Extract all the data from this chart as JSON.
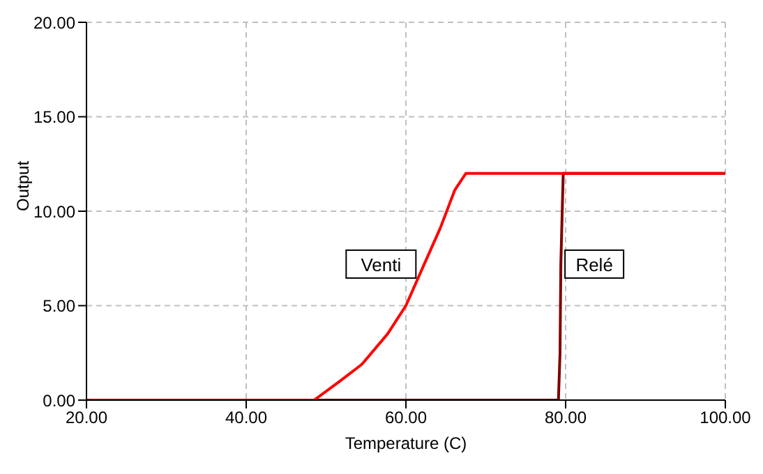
{
  "chart_data": {
    "type": "line",
    "xlabel": "Temperature (C)",
    "ylabel": "Output",
    "xlim": [
      20,
      100
    ],
    "ylim": [
      0,
      20
    ],
    "xticks": [
      {
        "value": 20,
        "label": "20.00"
      },
      {
        "value": 40,
        "label": "40.00"
      },
      {
        "value": 60,
        "label": "60.00"
      },
      {
        "value": 80,
        "label": "80.00"
      },
      {
        "value": 100,
        "label": "100.00"
      }
    ],
    "yticks": [
      {
        "value": 0,
        "label": "0.00"
      },
      {
        "value": 5,
        "label": "5.00"
      },
      {
        "value": 10,
        "label": "10.00"
      },
      {
        "value": 15,
        "label": "15.00"
      },
      {
        "value": 20,
        "label": "20.00"
      }
    ],
    "grid": true,
    "marker": "none",
    "line_style": "solid",
    "series": [
      {
        "name": "Relé",
        "color": "#800000",
        "x": [
          20,
          79.1,
          79.3,
          79.4,
          79.7,
          100
        ],
        "values": [
          0,
          0,
          2.5,
          7.2,
          12,
          12
        ]
      },
      {
        "name": "Venti",
        "color": "#ff0000",
        "x": [
          20,
          48.5,
          51.4,
          54.5,
          57.7,
          60,
          62.3,
          64.3,
          66.1,
          67.5,
          100
        ],
        "values": [
          0,
          0,
          0.9,
          1.9,
          3.5,
          5,
          7.2,
          9.1,
          11.1,
          12,
          12
        ]
      }
    ]
  }
}
